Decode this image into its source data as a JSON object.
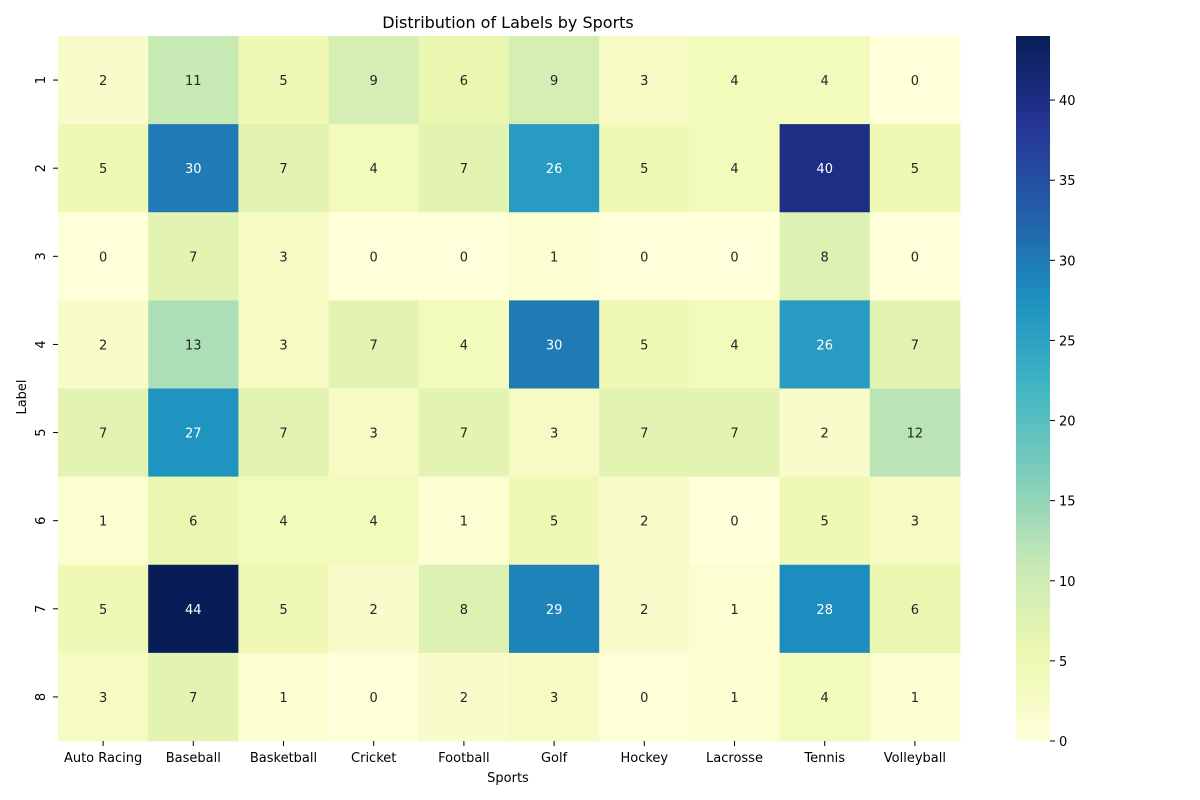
{
  "chart_data": {
    "type": "heatmap",
    "title": "Distribution of Labels by Sports",
    "xlabel": "Sports",
    "ylabel": "Label",
    "x_categories": [
      "Auto Racing",
      "Baseball",
      "Basketball",
      "Cricket",
      "Football",
      "Golf",
      "Hockey",
      "Lacrosse",
      "Tennis",
      "Volleyball"
    ],
    "y_categories": [
      "1",
      "2",
      "3",
      "4",
      "5",
      "6",
      "7",
      "8"
    ],
    "values": [
      [
        2,
        11,
        5,
        9,
        6,
        9,
        3,
        4,
        4,
        0
      ],
      [
        5,
        30,
        7,
        4,
        7,
        26,
        5,
        4,
        40,
        5
      ],
      [
        0,
        7,
        3,
        0,
        0,
        1,
        0,
        0,
        8,
        0
      ],
      [
        2,
        13,
        3,
        7,
        4,
        30,
        5,
        4,
        26,
        7
      ],
      [
        7,
        27,
        7,
        3,
        7,
        3,
        7,
        7,
        2,
        12
      ],
      [
        1,
        6,
        4,
        4,
        1,
        5,
        2,
        0,
        5,
        3
      ],
      [
        5,
        44,
        5,
        2,
        8,
        29,
        2,
        1,
        28,
        6
      ],
      [
        3,
        7,
        1,
        0,
        2,
        3,
        0,
        1,
        4,
        1
      ]
    ],
    "colormap": "YlGnBu",
    "vmin": 0,
    "vmax": 44,
    "colorbar_ticks": [
      0,
      5,
      10,
      15,
      20,
      25,
      30,
      35,
      40
    ],
    "annotations": true,
    "grid": false
  }
}
